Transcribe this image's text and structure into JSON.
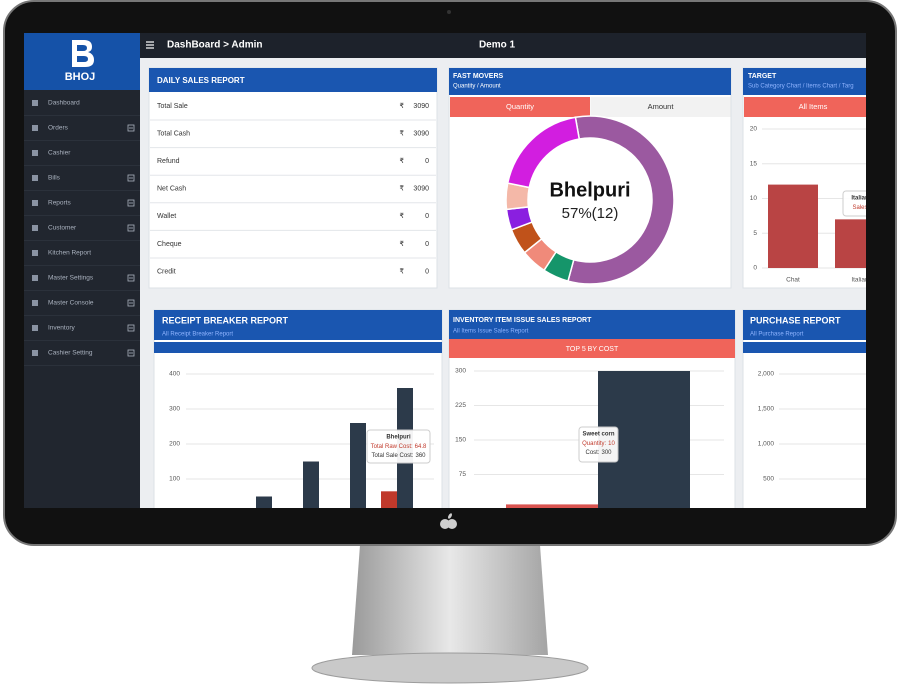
{
  "header": {
    "brand": "BHOJ",
    "breadcrumb": "DashBoard > Admin",
    "title": "Demo 1"
  },
  "sidebar": {
    "items": [
      {
        "label": "Dashboard",
        "expandable": false
      },
      {
        "label": "Orders",
        "expandable": true
      },
      {
        "label": "Cashier",
        "expandable": false
      },
      {
        "label": "Bills",
        "expandable": true
      },
      {
        "label": "Reports",
        "expandable": true
      },
      {
        "label": "Customer",
        "expandable": true
      },
      {
        "label": "Kitchen Report",
        "expandable": false
      },
      {
        "label": "Master Settings",
        "expandable": true
      },
      {
        "label": "Master Console",
        "expandable": true
      },
      {
        "label": "Inventory",
        "expandable": true
      },
      {
        "label": "Cashier Setting",
        "expandable": true
      }
    ]
  },
  "daily_sales": {
    "title": "DAILY SALES REPORT",
    "currency": "₹",
    "rows": [
      {
        "label": "Total Sale",
        "amount": 3090
      },
      {
        "label": "Total Cash",
        "amount": 3090
      },
      {
        "label": "Refund",
        "amount": 0
      },
      {
        "label": "Net Cash",
        "amount": 3090
      },
      {
        "label": "Wallet",
        "amount": 0
      },
      {
        "label": "Cheque",
        "amount": 0
      },
      {
        "label": "Credit",
        "amount": 0
      }
    ]
  },
  "fast_movers": {
    "title": "FAST MOVERS",
    "subtitle": "Quantity / Amount",
    "tabs": [
      "Quantity",
      "Amount"
    ],
    "active_tab": 0,
    "chart": {
      "type": "pie",
      "center_label": "Bhelpuri",
      "center_value": "57%(12)",
      "values": [
        57,
        5,
        5,
        5,
        4,
        5,
        19
      ],
      "colors": [
        "#9b59a0",
        "#15956a",
        "#f08a7a",
        "#c0521a",
        "#8a1fe0",
        "#f4b8a8",
        "#d21ee0"
      ]
    }
  },
  "target": {
    "title": "TARGET",
    "subtitle": "Sub Category Chart / Items Chart / Targ",
    "tab": "All Items",
    "chart": {
      "type": "bar",
      "categories": [
        "Chat",
        "Italian"
      ],
      "series": [
        {
          "name": "Sales",
          "color": "#b94444",
          "values": [
            12,
            7
          ]
        }
      ],
      "ylim": [
        0,
        20
      ],
      "yticks": [
        0,
        5,
        10,
        15,
        20
      ],
      "grid": true,
      "tooltip_index": 1
    }
  },
  "receipt_breaker": {
    "title": "RECEIPT BREAKER REPORT",
    "subtitle": "All Receipt Breaker Report",
    "chart": {
      "type": "bar",
      "categories": [
        null,
        null,
        null,
        "Bhelpuri"
      ],
      "series": [
        {
          "name": "Total Raw Cost:",
          "color": "#c0392b",
          "values": [
            null,
            null,
            null,
            64.8
          ]
        },
        {
          "name": "Total Sale Cost:",
          "color": "#2c3a4a",
          "values": [
            50,
            150,
            260,
            360
          ]
        }
      ],
      "ylim": [
        0,
        400
      ],
      "yticks": [
        100,
        200,
        300,
        400
      ],
      "grid": true,
      "tooltip_index": 3
    }
  },
  "inventory": {
    "title": "INVENTORY ITEM ISSUE SALES REPORT",
    "subtitle": "All Items Issue Sales Report",
    "tab": "TOP 5 BY COST",
    "chart": {
      "type": "bar",
      "categories": [
        "Sweet corn"
      ],
      "series": [
        {
          "name": "Quantity:",
          "color": "#d9534f",
          "values": [
            10
          ]
        },
        {
          "name": "Cost:",
          "color": "#2c3a4a",
          "values": [
            300
          ]
        }
      ],
      "ylim": [
        0,
        300
      ],
      "yticks": [
        75,
        150,
        225,
        300
      ],
      "grid": true,
      "tooltip_index": 0
    }
  },
  "purchase": {
    "title": "PURCHASE REPORT",
    "subtitle": "All Purchase Report",
    "chart": {
      "type": "bar",
      "categories": [],
      "series": [],
      "ylim": [
        0,
        2000
      ],
      "yticks": [
        500,
        {
          "value": 1000,
          "label": "1,000"
        },
        {
          "value": 1500,
          "label": "1,500"
        },
        {
          "value": 2000,
          "label": "2,000"
        }
      ],
      "grid": true
    }
  }
}
